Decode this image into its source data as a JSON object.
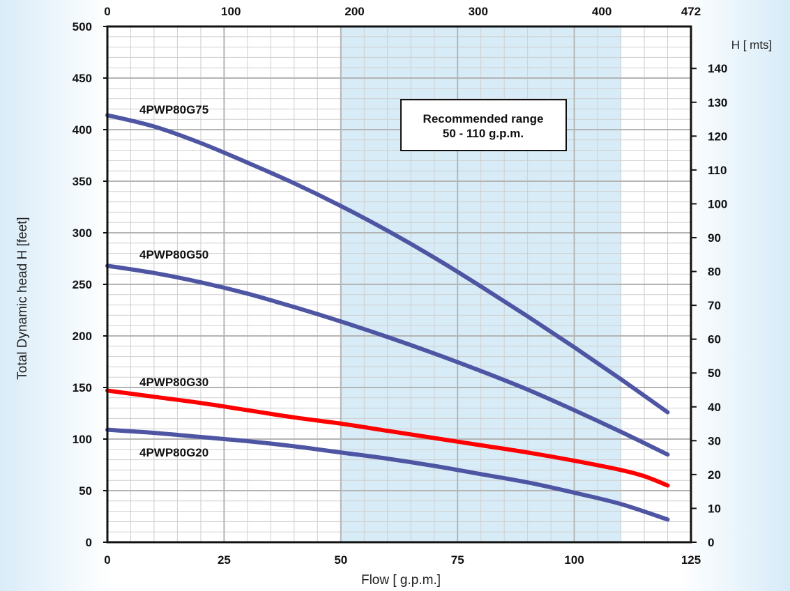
{
  "chart_data": {
    "type": "line",
    "xlabel": "Flow [ g.p.m.]",
    "ylabel": "Total Dynamic head H [feet]",
    "ylabel_right": "H [ mts]",
    "xlim": [
      0,
      125
    ],
    "ylim": [
      0,
      500
    ],
    "ylim_right": [
      0,
      152.4
    ],
    "x_ticks": [
      "0",
      "25",
      "50",
      "75",
      "100",
      "125"
    ],
    "y_ticks": [
      "0",
      "50",
      "100",
      "150",
      "200",
      "250",
      "300",
      "350",
      "400",
      "450",
      "500"
    ],
    "top_ticks": [
      "0",
      "100",
      "200",
      "300",
      "400",
      "472"
    ],
    "top_tick_positions_gpm": [
      0,
      26.47,
      52.95,
      79.42,
      105.9,
      125
    ],
    "right_ticks": [
      "0",
      "10",
      "20",
      "30",
      "40",
      "50",
      "60",
      "70",
      "80",
      "90",
      "100",
      "110",
      "120",
      "130",
      "140"
    ],
    "grid": true,
    "recommended_range": {
      "x_from": 50,
      "x_to": 110,
      "label_line1": "Recommended range",
      "label_line2": "50 - 110 g.p.m."
    },
    "series": [
      {
        "name": "4PWP80G75",
        "color": "#4e55a3",
        "x": [
          0,
          10,
          20,
          30,
          40,
          50,
          60,
          70,
          80,
          90,
          100,
          110,
          120
        ],
        "values": [
          414,
          403,
          387,
          368,
          348,
          326,
          302,
          276,
          248,
          219,
          189,
          158,
          126
        ]
      },
      {
        "name": "4PWP80G50",
        "color": "#4e55a3",
        "x": [
          0,
          10,
          20,
          30,
          40,
          50,
          60,
          70,
          80,
          90,
          100,
          110,
          120
        ],
        "values": [
          268,
          261,
          252,
          241,
          228,
          214,
          199,
          183,
          166,
          148,
          128,
          107,
          85
        ]
      },
      {
        "name": "4PWP80G30",
        "color": "#ff0000",
        "x": [
          0,
          10,
          20,
          30,
          40,
          50,
          60,
          70,
          80,
          90,
          100,
          110,
          115,
          120
        ],
        "values": [
          147,
          141,
          135,
          128,
          121,
          115,
          108,
          101,
          94,
          87,
          79,
          70,
          64,
          55
        ]
      },
      {
        "name": "4PWP80G20",
        "color": "#4e55a3",
        "x": [
          0,
          10,
          20,
          30,
          40,
          50,
          60,
          70,
          80,
          90,
          100,
          110,
          120
        ],
        "values": [
          109,
          106,
          102,
          98,
          93,
          87,
          81,
          74,
          66,
          58,
          48,
          37,
          22
        ]
      }
    ]
  }
}
